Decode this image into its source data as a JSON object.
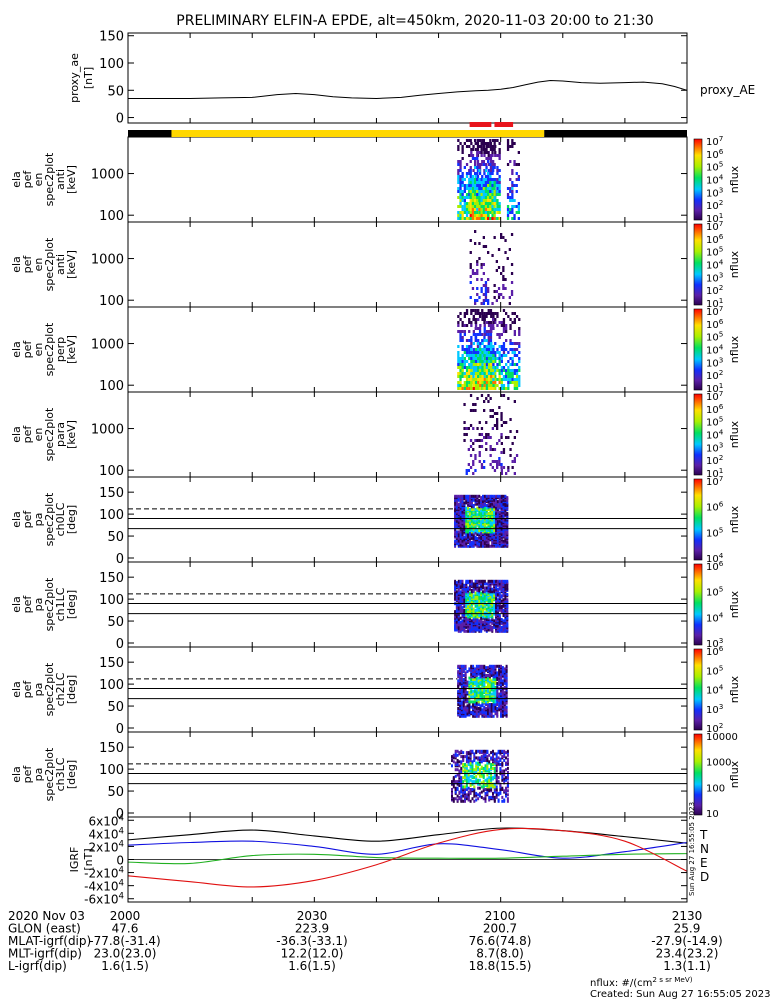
{
  "title": "PRELIMINARY ELFIN-A EPDE, alt=450km, 2020-11-03 20:00 to 21:30",
  "colors": {
    "foreground": "#000000",
    "background": "#ffffff",
    "science_zone": "#ffd700",
    "night": "#000000",
    "red_marker": "#e8141c"
  },
  "chart_data": {
    "type": "spectrogram",
    "time_axis": {
      "start_min": 0,
      "end_min": 90,
      "tick_minutes": [
        0,
        30,
        60,
        90
      ],
      "tick_labels": [
        "2000",
        "2030",
        "2100",
        "2130"
      ]
    },
    "status_bar": {
      "night_intervals": [
        [
          0,
          7
        ],
        [
          67,
          90
        ]
      ],
      "day_intervals": [
        [
          7,
          67
        ]
      ],
      "red_markers": [
        [
          55,
          58.5
        ],
        [
          59,
          62
        ]
      ]
    },
    "panels": [
      {
        "id": "proxy_ae",
        "kind": "line",
        "ylabel": [
          "proxy_ae",
          "[nT]"
        ],
        "yticks": [
          "0",
          "50",
          "100",
          "150"
        ],
        "ytick_values": [
          0,
          50,
          100,
          150
        ],
        "ylim": [
          -10,
          155
        ],
        "legend": "proxy_AE",
        "x": [
          0,
          5,
          10,
          15,
          20,
          24,
          27,
          30,
          33,
          36,
          40,
          44,
          47,
          50,
          53,
          56,
          58,
          60,
          62,
          64,
          66,
          68,
          70,
          73,
          76,
          80,
          83,
          86,
          88,
          90
        ],
        "y": [
          35,
          35,
          35,
          36,
          37,
          42,
          44,
          42,
          38,
          36,
          35,
          37,
          41,
          44,
          47,
          49,
          50,
          52,
          55,
          60,
          65,
          68,
          67,
          64,
          63,
          64,
          65,
          62,
          57,
          50
        ]
      },
      {
        "id": "en_anti",
        "kind": "energy",
        "ylabel": [
          "ela",
          "pef",
          "en",
          "spec2plot",
          "anti",
          "[keV]"
        ],
        "yticks": [
          "100",
          "1000"
        ],
        "cb_ticks": [
          "10^1",
          "10^2",
          "10^3",
          "10^4",
          "10^5",
          "10^6",
          "10^7"
        ],
        "cb_label": "nflux",
        "activity": [
          [
            53,
            60,
            0.8
          ],
          [
            61,
            63,
            0.6
          ],
          [
            55,
            59,
            1.0
          ]
        ]
      },
      {
        "id": "en_perp_a",
        "kind": "energy",
        "ylabel": [
          "ela",
          "pef",
          "en",
          "spec2plot",
          "anti",
          "[keV]"
        ],
        "yticks": [
          "100",
          "1000"
        ],
        "cb_ticks": [
          "10^1",
          "10^2",
          "10^3",
          "10^4",
          "10^5",
          "10^6",
          "10^7"
        ],
        "cb_label": "nflux",
        "activity": [
          [
            55,
            58,
            0.35
          ],
          [
            58.5,
            62,
            0.2
          ]
        ]
      },
      {
        "id": "en_perp",
        "kind": "energy",
        "ylabel": [
          "ela",
          "pef",
          "en",
          "spec2plot",
          "perp",
          "[keV]"
        ],
        "yticks": [
          "100",
          "1000"
        ],
        "cb_ticks": [
          "10^1",
          "10^2",
          "10^3",
          "10^4",
          "10^5",
          "10^6",
          "10^7"
        ],
        "cb_label": "nflux",
        "activity": [
          [
            53,
            60,
            0.9
          ],
          [
            60,
            63,
            0.7
          ],
          [
            55.5,
            59,
            1.0
          ]
        ]
      },
      {
        "id": "en_para",
        "kind": "energy",
        "ylabel": [
          "ela",
          "pef",
          "en",
          "spec2plot",
          "para",
          "[keV]"
        ],
        "yticks": [
          "100",
          "1000"
        ],
        "cb_ticks": [
          "10^1",
          "10^2",
          "10^3",
          "10^4",
          "10^5",
          "10^6",
          "10^7"
        ],
        "cb_label": "nflux",
        "activity": [
          [
            54,
            60,
            0.3
          ],
          [
            60,
            62.5,
            0.2
          ]
        ]
      },
      {
        "id": "pa_ch0LC",
        "kind": "pa",
        "ylabel": [
          "ela",
          "pef",
          "pa",
          "spec2plot",
          "ch0LC",
          "[deg]"
        ],
        "yticks": [
          "0",
          "50",
          "100",
          "150"
        ],
        "cb_ticks": [
          "10^4",
          "10^5",
          "10^6",
          "10^7"
        ],
        "cb_label": "nflux",
        "lines": {
          "solid": [
            67,
            90
          ],
          "dashed": 112
        },
        "activity": [
          [
            52.5,
            61,
            1.0
          ]
        ]
      },
      {
        "id": "pa_ch1LC",
        "kind": "pa",
        "ylabel": [
          "ela",
          "pef",
          "pa",
          "spec2plot",
          "ch1LC",
          "[deg]"
        ],
        "yticks": [
          "0",
          "50",
          "100",
          "150"
        ],
        "cb_ticks": [
          "10^3",
          "10^4",
          "10^5",
          "10^6"
        ],
        "cb_label": "nflux",
        "lines": {
          "solid": [
            67,
            90
          ],
          "dashed": 112
        },
        "activity": [
          [
            52.5,
            61,
            0.9
          ]
        ]
      },
      {
        "id": "pa_ch2LC",
        "kind": "pa",
        "ylabel": [
          "ela",
          "pef",
          "pa",
          "spec2plot",
          "ch2LC",
          "[deg]"
        ],
        "yticks": [
          "0",
          "50",
          "100",
          "150"
        ],
        "cb_ticks": [
          "10^2",
          "10^3",
          "10^4",
          "10^5",
          "10^6"
        ],
        "cb_label": "nflux",
        "lines": {
          "solid": [
            67,
            90
          ],
          "dashed": 112
        },
        "activity": [
          [
            53,
            61,
            0.8
          ]
        ]
      },
      {
        "id": "pa_ch3LC",
        "kind": "pa",
        "ylabel": [
          "ela",
          "pef",
          "pa",
          "spec2plot",
          "ch3LC",
          "[deg]"
        ],
        "yticks": [
          "0",
          "50",
          "100",
          "150"
        ],
        "cb_ticks": [
          "10",
          "100",
          "1000",
          "10000"
        ],
        "cb_label": "nflux",
        "lines": {
          "solid": [
            67,
            90
          ],
          "dashed": 112
        },
        "activity": [
          [
            52,
            61,
            0.5
          ]
        ]
      },
      {
        "id": "igrf",
        "kind": "igrf",
        "ylabel": [
          "IGRF",
          "[nT]"
        ],
        "yticks": [
          "-6x10^4",
          "-4x10^4",
          "-2x10^4",
          "0",
          "2x10^4",
          "4x10^4",
          "6x10^4"
        ],
        "ytick_values": [
          -60000,
          -40000,
          -20000,
          0,
          20000,
          40000,
          60000
        ],
        "ylim": [
          -65000,
          65000
        ],
        "legend": [
          "T",
          "N",
          "E",
          "D"
        ],
        "series": [
          {
            "name": "T",
            "color": "#000000",
            "x": [
              0,
              10,
              20,
              30,
              40,
              50,
              60,
              70,
              80,
              90
            ],
            "y": [
              30000,
              38000,
              45000,
              36000,
              28000,
              38000,
              48000,
              44000,
              35000,
              25000
            ]
          },
          {
            "name": "N",
            "color": "#1010e0",
            "x": [
              0,
              10,
              20,
              30,
              40,
              50,
              60,
              70,
              80,
              90
            ],
            "y": [
              22000,
              26000,
              28000,
              20000,
              8000,
              24000,
              15000,
              2000,
              12000,
              26000
            ]
          },
          {
            "name": "E",
            "color": "#20b020",
            "x": [
              0,
              10,
              20,
              30,
              40,
              50,
              60,
              70,
              80,
              90
            ],
            "y": [
              -4000,
              -6000,
              6000,
              8000,
              3000,
              2000,
              2000,
              5000,
              8000,
              9000
            ]
          },
          {
            "name": "D",
            "color": "#e01010",
            "x": [
              0,
              10,
              20,
              30,
              40,
              50,
              60,
              70,
              80,
              90
            ],
            "y": [
              -25000,
              -34000,
              -42000,
              -32000,
              -8000,
              25000,
              46000,
              44000,
              28000,
              -18000
            ]
          }
        ],
        "side_note": "Sun Aug 27 16:55:05 2023"
      }
    ],
    "footer_rows": [
      {
        "label": "2020 Nov 03",
        "values": [
          "2000",
          "2030",
          "2100",
          "2130"
        ]
      },
      {
        "label": "GLON (east)",
        "values": [
          "47.6",
          "223.9",
          "200.7",
          "25.9"
        ]
      },
      {
        "label": "MLAT-igrf(dip)",
        "values": [
          "-77.8(-31.4)",
          "-36.3(-33.1)",
          "76.6(74.8)",
          "-27.9(-14.9)"
        ]
      },
      {
        "label": "MLT-igrf(dip)",
        "values": [
          "23.0(23.0)",
          "12.2(12.0)",
          "8.7(8.0)",
          "23.4(23.2)"
        ]
      },
      {
        "label": "L-igrf(dip)",
        "values": [
          "1.6(1.5)",
          "1.6(1.5)",
          "18.8(15.5)",
          "1.3(1.1)"
        ]
      }
    ],
    "notes": [
      "nflux: #/(cm^2 s sr MeV)",
      "Created: Sun Aug 27 16:55:05 2023"
    ]
  }
}
